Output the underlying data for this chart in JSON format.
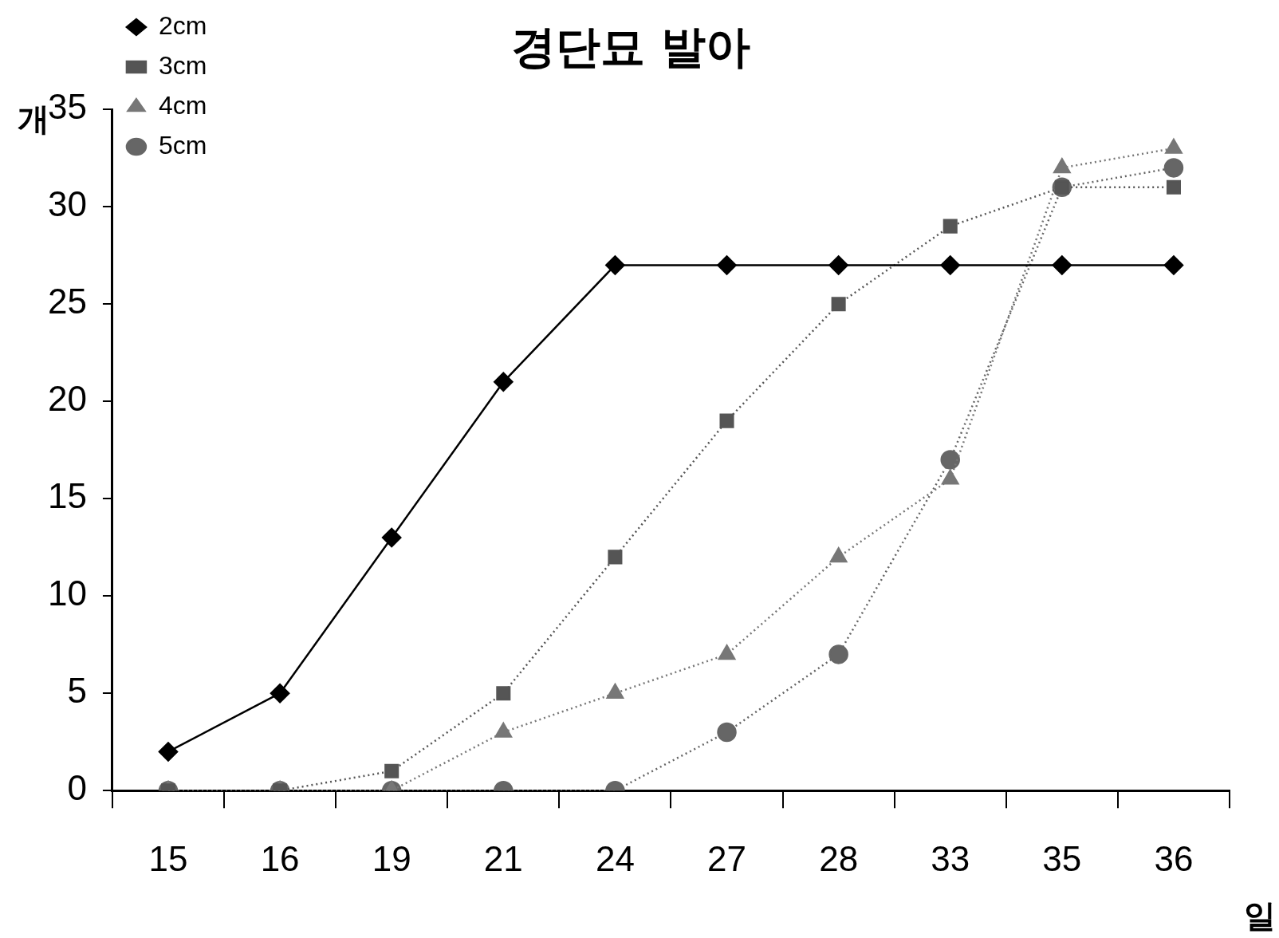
{
  "chart_data": {
    "type": "line",
    "title": "경단묘 발아",
    "ylabel": "개",
    "xlabel": "일",
    "categories": [
      "15",
      "16",
      "19",
      "21",
      "24",
      "27",
      "28",
      "33",
      "35",
      "36"
    ],
    "series": [
      {
        "name": "2cm",
        "color": "#000000",
        "marker": "diamond",
        "line_style": "solid",
        "values": [
          2,
          5,
          13,
          21,
          27,
          27,
          27,
          27,
          27,
          27
        ]
      },
      {
        "name": "3cm",
        "color": "#555555",
        "marker": "square",
        "line_style": "dotted",
        "values": [
          0,
          0,
          1,
          5,
          12,
          19,
          25,
          29,
          31,
          31
        ]
      },
      {
        "name": "4cm",
        "color": "#777777",
        "marker": "triangle",
        "line_style": "dotted",
        "values": [
          0,
          0,
          0,
          3,
          5,
          7,
          12,
          16,
          32,
          33
        ]
      },
      {
        "name": "5cm",
        "color": "#666666",
        "marker": "circle",
        "line_style": "dotted",
        "values": [
          0,
          0,
          0,
          0,
          0,
          3,
          7,
          17,
          31,
          32
        ]
      }
    ],
    "ylim": [
      0,
      35
    ],
    "yticks": [
      0,
      5,
      10,
      15,
      20,
      25,
      30,
      35
    ],
    "grid": false,
    "legend": "top left"
  }
}
